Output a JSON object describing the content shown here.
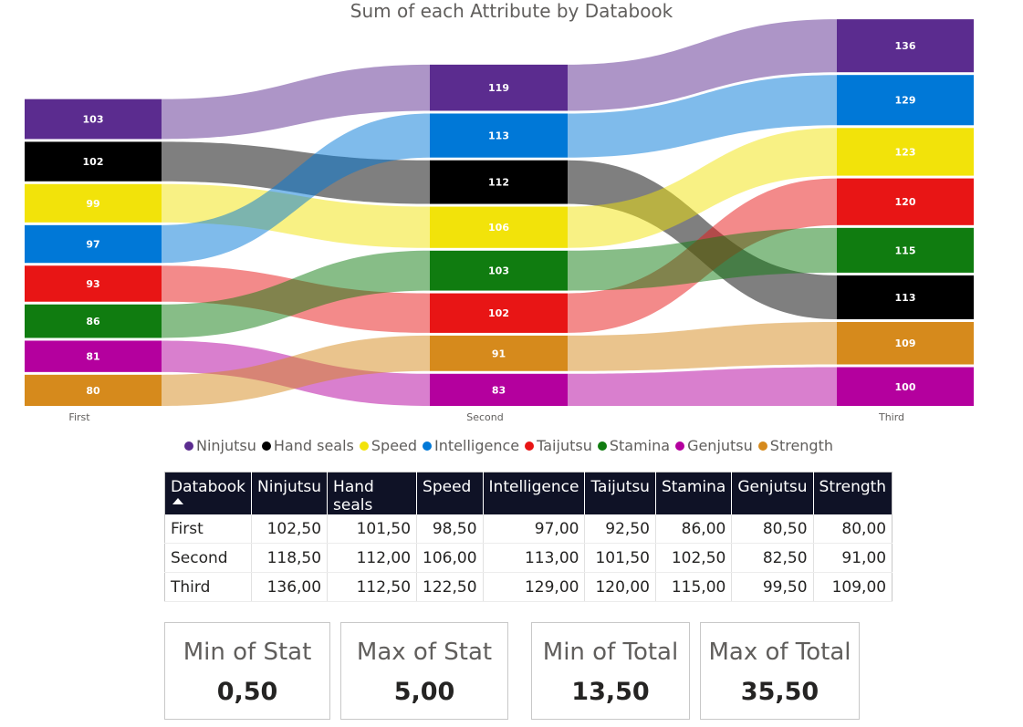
{
  "chart_data": {
    "type": "ribbon",
    "title": "Sum of each Attribute by Databook",
    "categories": [
      "First",
      "Second",
      "Third"
    ],
    "series": [
      {
        "name": "Ninjutsu",
        "color": "#5B2C8F",
        "labels": [
          "103",
          "119",
          "136"
        ],
        "values": [
          102.5,
          118.5,
          136.0
        ]
      },
      {
        "name": "Hand seals",
        "color": "#000000",
        "labels": [
          "102",
          "112",
          "113"
        ],
        "values": [
          101.5,
          112.0,
          112.5
        ]
      },
      {
        "name": "Speed",
        "color": "#F2E30A",
        "labels": [
          "99",
          "106",
          "123"
        ],
        "values": [
          98.5,
          106.0,
          122.5
        ]
      },
      {
        "name": "Intelligence",
        "color": "#0078D7",
        "labels": [
          "97",
          "113",
          "129"
        ],
        "values": [
          97.0,
          113.0,
          129.0
        ]
      },
      {
        "name": "Taijutsu",
        "color": "#E81515",
        "labels": [
          "93",
          "102",
          "120"
        ],
        "values": [
          92.5,
          101.5,
          120.0
        ]
      },
      {
        "name": "Stamina",
        "color": "#107C10",
        "labels": [
          "86",
          "103",
          "115"
        ],
        "values": [
          86.0,
          102.5,
          115.0
        ]
      },
      {
        "name": "Genjutsu",
        "color": "#B4009E",
        "labels": [
          "81",
          "83",
          "100"
        ],
        "values": [
          80.5,
          82.5,
          99.5
        ]
      },
      {
        "name": "Strength",
        "color": "#D68A1C",
        "labels": [
          "80",
          "91",
          "109"
        ],
        "values": [
          80.0,
          91.0,
          109.0
        ]
      }
    ]
  },
  "table": {
    "headers": [
      "Databook",
      "Ninjutsu",
      "Hand seals",
      "Speed",
      "Intelligence",
      "Taijutsu",
      "Stamina",
      "Genjutsu",
      "Strength"
    ],
    "rows": [
      [
        "First",
        "102,50",
        "101,50",
        "98,50",
        "97,00",
        "92,50",
        "86,00",
        "80,50",
        "80,00"
      ],
      [
        "Second",
        "118,50",
        "112,00",
        "106,00",
        "113,00",
        "101,50",
        "102,50",
        "82,50",
        "91,00"
      ],
      [
        "Third",
        "136,00",
        "112,50",
        "122,50",
        "129,00",
        "120,00",
        "115,00",
        "99,50",
        "109,00"
      ]
    ]
  },
  "cards": [
    {
      "label": "Min of Stat",
      "value": "0,50"
    },
    {
      "label": "Max of Stat",
      "value": "5,00"
    },
    {
      "label": "Min of Total",
      "value": "13,50"
    },
    {
      "label": "Max of Total",
      "value": "35,50"
    }
  ]
}
